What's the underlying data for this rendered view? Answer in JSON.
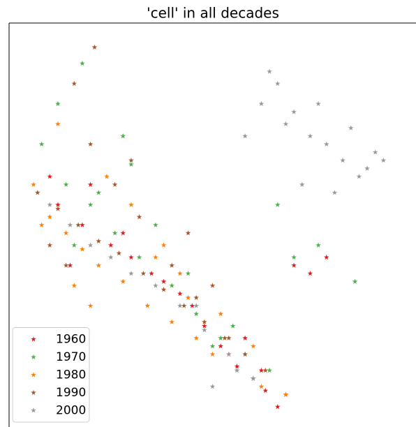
{
  "chart_data": {
    "type": "scatter",
    "title": "'cell' in all decades",
    "xlim": [
      0,
      100
    ],
    "ylim": [
      0,
      100
    ],
    "marker": "star",
    "legend": "lower left",
    "series": [
      {
        "name": "1960",
        "color": "#e41a1c",
        "x": [
          12,
          18,
          25,
          30,
          35,
          42,
          48,
          52,
          56,
          60,
          63,
          66,
          70,
          74,
          78,
          20,
          28,
          38,
          45,
          54,
          62,
          10,
          15,
          58,
          68
        ],
        "y": [
          55,
          50,
          45,
          42,
          38,
          33,
          25,
          20,
          15,
          12,
          9,
          5,
          40,
          38,
          42,
          60,
          48,
          36,
          30,
          18,
          14,
          62,
          40,
          22,
          8
        ]
      },
      {
        "name": "1970",
        "color": "#4daf4a",
        "x": [
          8,
          14,
          20,
          26,
          32,
          40,
          46,
          52,
          58,
          64,
          70,
          76,
          85,
          22,
          30,
          12,
          18,
          36,
          44,
          50,
          60,
          66,
          16,
          28,
          55
        ],
        "y": [
          70,
          60,
          55,
          48,
          42,
          35,
          28,
          22,
          18,
          14,
          42,
          45,
          36,
          58,
          65,
          80,
          90,
          50,
          38,
          20,
          12,
          55,
          45,
          72,
          25
        ]
      },
      {
        "name": "1980",
        "color": "#ff7f00",
        "x": [
          6,
          10,
          14,
          18,
          22,
          28,
          34,
          40,
          46,
          50,
          56,
          62,
          68,
          24,
          30,
          12,
          38,
          44,
          52,
          60,
          16,
          20,
          42,
          36,
          8
        ],
        "y": [
          60,
          52,
          48,
          44,
          40,
          36,
          30,
          26,
          22,
          18,
          14,
          10,
          8,
          62,
          55,
          75,
          45,
          32,
          28,
          20,
          35,
          30,
          38,
          42,
          50
        ]
      },
      {
        "name": "1990",
        "color": "#a65628",
        "x": [
          7,
          12,
          17,
          22,
          27,
          33,
          38,
          43,
          48,
          53,
          58,
          63,
          20,
          26,
          32,
          16,
          40,
          46,
          54,
          21,
          30,
          10,
          14,
          50,
          44
        ],
        "y": [
          58,
          54,
          50,
          46,
          43,
          38,
          34,
          30,
          26,
          22,
          18,
          14,
          70,
          60,
          52,
          85,
          40,
          32,
          22,
          94,
          66,
          45,
          40,
          35,
          48
        ]
      },
      {
        "name": "2000",
        "color": "#999999",
        "x": [
          10,
          15,
          20,
          25,
          30,
          36,
          42,
          48,
          54,
          60,
          66,
          70,
          74,
          78,
          82,
          86,
          90,
          68,
          76,
          84,
          62,
          72,
          80,
          88,
          58,
          64,
          92,
          50,
          46,
          56
        ],
        "y": [
          55,
          50,
          45,
          42,
          38,
          35,
          30,
          24,
          18,
          12,
          85,
          78,
          72,
          70,
          66,
          62,
          68,
          75,
          80,
          74,
          80,
          60,
          58,
          64,
          72,
          88,
          66,
          10,
          30,
          14
        ]
      }
    ]
  }
}
